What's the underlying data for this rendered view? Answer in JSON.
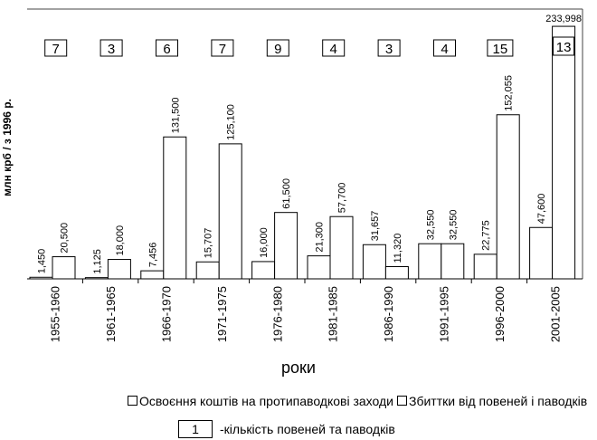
{
  "chart_data": {
    "type": "bar",
    "ylabel": "млн крб / з 1996 р.",
    "xlabel": "роки",
    "categories": [
      "1955-1960",
      "1961-1965",
      "1966-1970",
      "1971-1975",
      "1976-1980",
      "1981-1985",
      "1986-1990",
      "1991-1995",
      "1996-2000",
      "2001-2005"
    ],
    "series": [
      {
        "name": "Освоєння коштів на протипаводкові заходи",
        "values": [
          1.45,
          1.125,
          7.456,
          15.707,
          16.0,
          21.3,
          31.657,
          32.55,
          22.775,
          47.6
        ],
        "labels": [
          "1,450",
          "1,125",
          "7,456",
          "15,707",
          "16,000",
          "21,300",
          "31,657",
          "32,550",
          "22,775",
          "47,600"
        ]
      },
      {
        "name": "Збиттки від повеней і паводків",
        "values": [
          20.5,
          18.0,
          131.5,
          125.1,
          61.5,
          57.7,
          11.32,
          32.55,
          152.055,
          233.998
        ],
        "labels": [
          "20,500",
          "18,000",
          "131,500",
          "125,100",
          "61,500",
          "57,700",
          "11,320",
          "32,550",
          "152,055",
          "233,998"
        ]
      }
    ],
    "counts": [
      "7",
      "3",
      "6",
      "7",
      "9",
      "4",
      "3",
      "4",
      "15",
      "13"
    ],
    "ylim": [
      0,
      250
    ],
    "legend": {
      "item1": "Освоєння коштів на протипаводкові заходи",
      "item2": "Збиттки від повеней і паводків",
      "count_example": "1",
      "count_text": "-кількість   повеней та паводків"
    }
  }
}
